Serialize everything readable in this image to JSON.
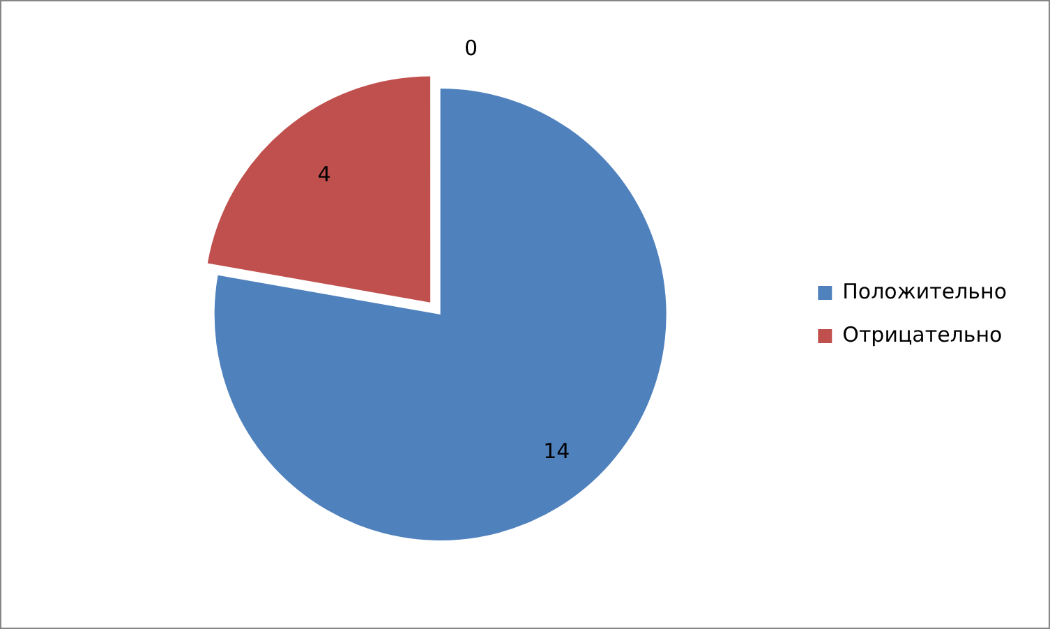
{
  "chart_data": {
    "type": "pie",
    "categories": [
      "Положительно",
      "Отрицательно",
      null
    ],
    "values": [
      14,
      4,
      0
    ],
    "colors": [
      "#4f81bd",
      "#c0504d",
      "#9bbb59"
    ],
    "value_labels": [
      "14",
      "4",
      "0"
    ],
    "legend": "right"
  }
}
